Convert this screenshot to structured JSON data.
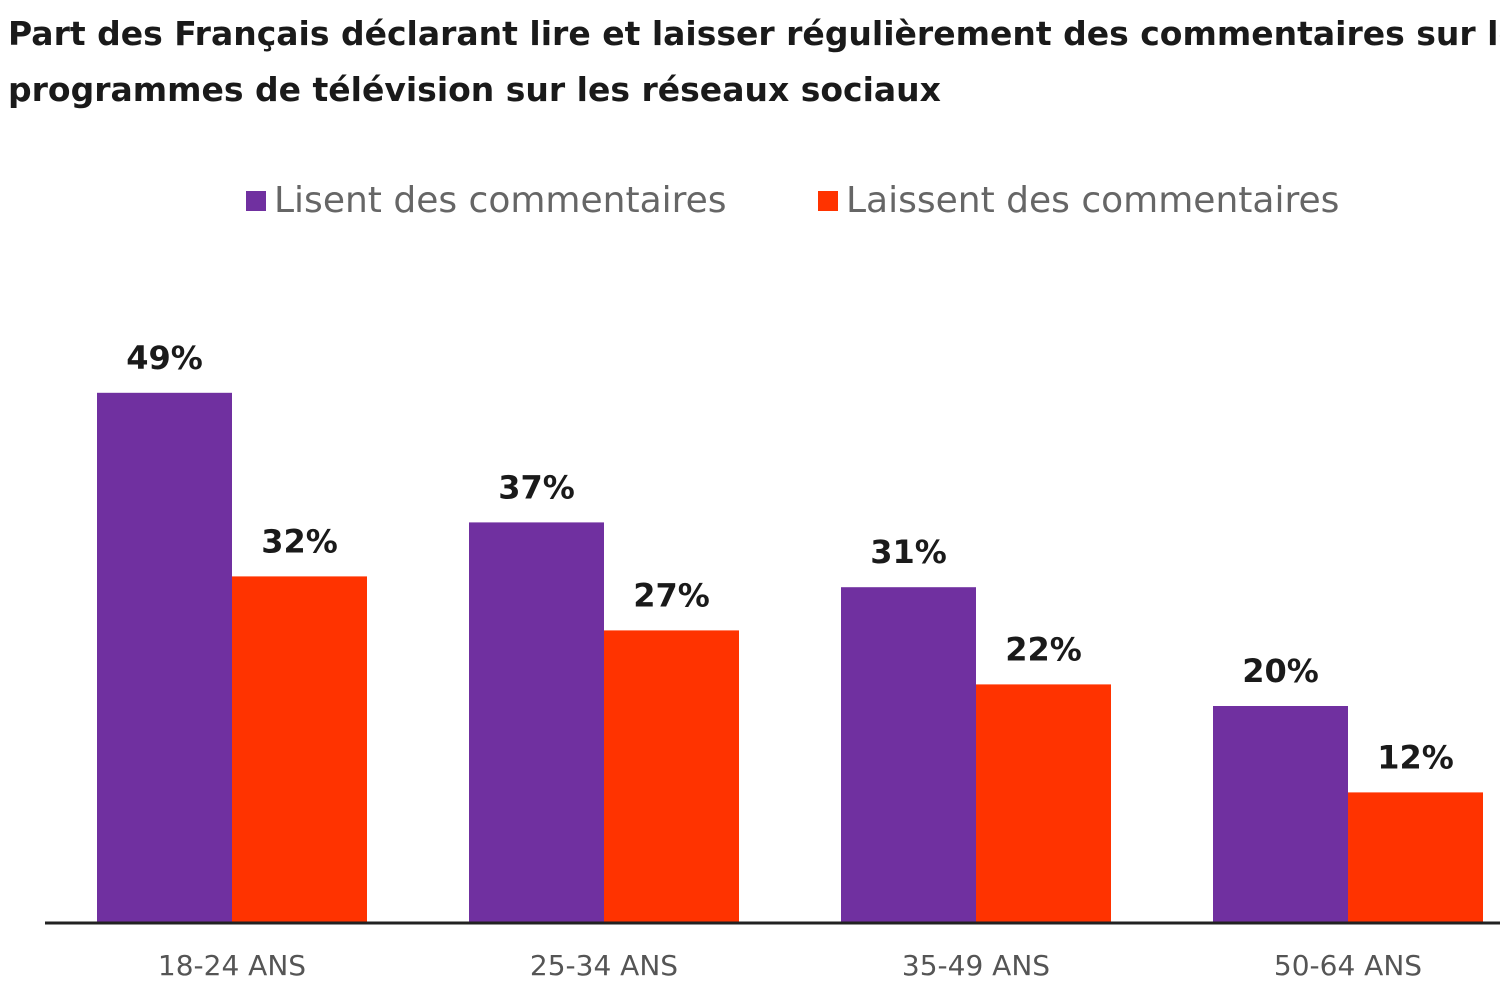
{
  "chart_data": {
    "type": "bar",
    "title_lines": [
      "Part des Français déclarant lire et laisser régulièrement des commentaires sur les",
      "programmes de télévision sur les réseaux sociaux"
    ],
    "categories": [
      "18-24 ANS",
      "25-34 ANS",
      "35-49 ANS",
      "50-64 ANS"
    ],
    "series": [
      {
        "name": "Lisent des commentaires",
        "color": "#7030a0",
        "values": [
          49,
          37,
          31,
          20
        ],
        "labels": [
          "49%",
          "37%",
          "31%",
          "20%"
        ]
      },
      {
        "name": "Laissent des commentaires",
        "color": "#ff3300",
        "values": [
          32,
          27,
          22,
          12
        ],
        "labels": [
          "32%",
          "27%",
          "22%",
          "12%"
        ]
      }
    ],
    "xlabel": "",
    "ylabel": "",
    "ylim": [
      0,
      55
    ],
    "grid": false,
    "legend_position": "top-center"
  }
}
